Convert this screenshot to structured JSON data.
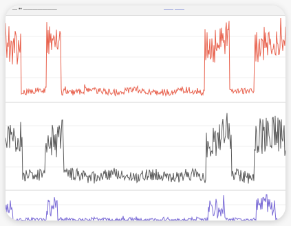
{
  "window": {
    "title_left": "— •• ———————",
    "title_mid": "—— ——"
  },
  "colors": {
    "panel1": "#e8624e",
    "panel2": "#5b5b5b",
    "panel3": "#7a6bd6",
    "grid": "#e6e6e6",
    "divider": "#d0d0d0"
  },
  "icons": []
}
